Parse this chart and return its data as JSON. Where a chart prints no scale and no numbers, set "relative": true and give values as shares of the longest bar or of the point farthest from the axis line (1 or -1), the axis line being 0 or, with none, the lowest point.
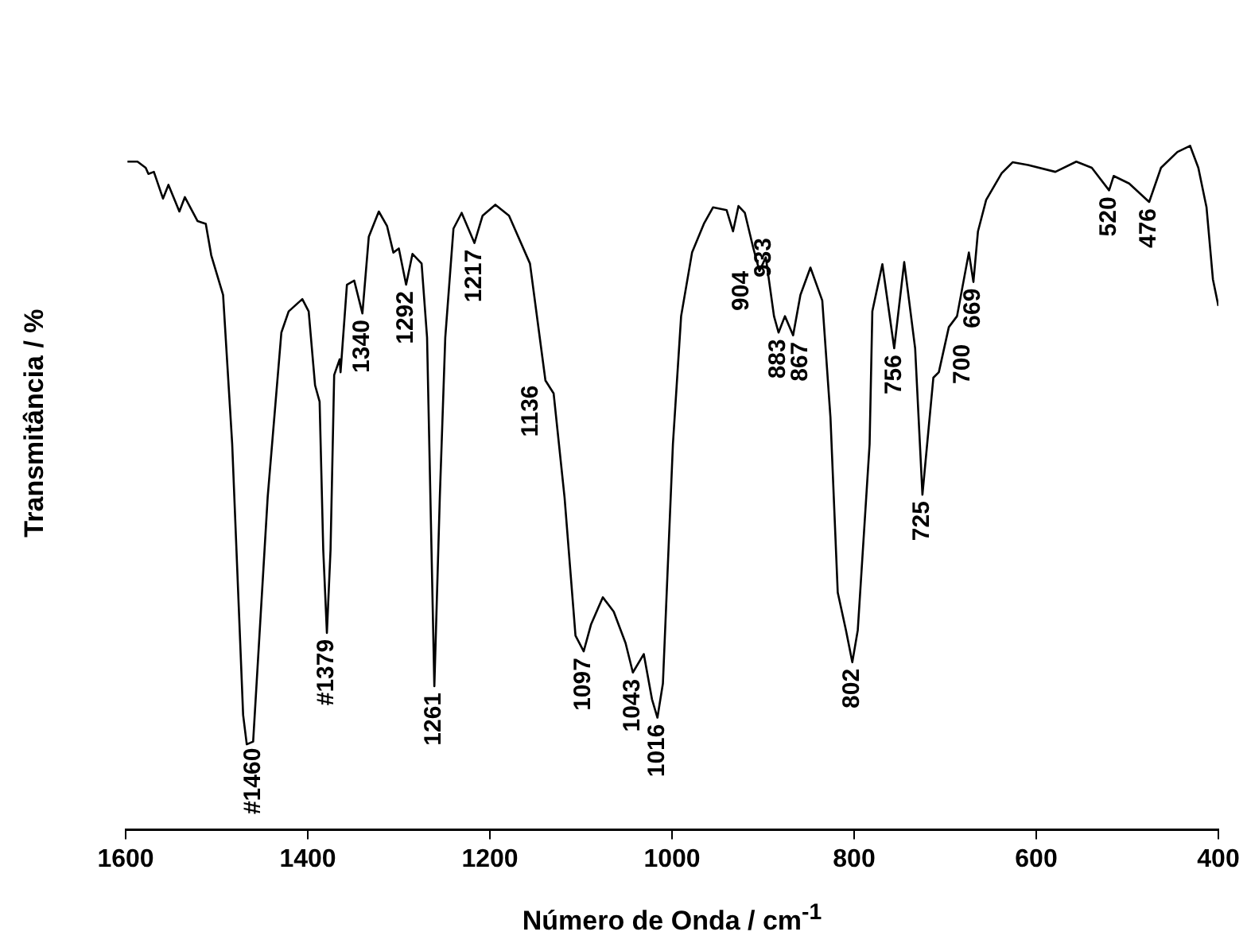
{
  "chart_data": {
    "type": "line",
    "relative": true,
    "xlabel": "Número de Onda / cm$^{-1}$",
    "ylabel": "Transmitância / %",
    "xlim": [
      1600,
      400
    ],
    "xticks": [
      1600,
      1400,
      1200,
      1000,
      800,
      600,
      400
    ],
    "grid": false,
    "legend": false,
    "marker": "none",
    "line_style": "solid",
    "tick_labels": "x",
    "series": [
      {
        "color": "#000000",
        "x": [
          1598,
          1587,
          1578,
          1575,
          1569,
          1559,
          1553,
          1541,
          1535,
          1521,
          1512,
          1506,
          1493,
          1483,
          1471,
          1467,
          1460,
          1444,
          1429,
          1421,
          1406,
          1399,
          1392,
          1387,
          1383,
          1379,
          1375,
          1371,
          1365,
          1364,
          1357,
          1349,
          1340,
          1333,
          1322,
          1313,
          1306,
          1300,
          1292,
          1285,
          1275,
          1269,
          1261,
          1255,
          1249,
          1240,
          1231,
          1217,
          1208,
          1194,
          1179,
          1156,
          1139,
          1130,
          1118,
          1106,
          1097,
          1089,
          1076,
          1064,
          1051,
          1043,
          1031,
          1022,
          1016,
          1010,
          999,
          990,
          978,
          965,
          955,
          940,
          933,
          927,
          920,
          911,
          904,
          897,
          888,
          883,
          876,
          867,
          859,
          848,
          835,
          826,
          818,
          809,
          802,
          796,
          783,
          780,
          769,
          756,
          745,
          733,
          725,
          713,
          707,
          696,
          687,
          674,
          669,
          664,
          655,
          638,
          626,
          609,
          579,
          556,
          539,
          520,
          515,
          498,
          476,
          463,
          445,
          431,
          422,
          413,
          406,
          400
        ],
        "values": [
          0.977,
          0.977,
          0.968,
          0.959,
          0.962,
          0.923,
          0.943,
          0.904,
          0.925,
          0.89,
          0.886,
          0.84,
          0.782,
          0.564,
          0.168,
          0.125,
          0.129,
          0.487,
          0.727,
          0.758,
          0.776,
          0.758,
          0.65,
          0.626,
          0.409,
          0.288,
          0.409,
          0.665,
          0.688,
          0.669,
          0.797,
          0.803,
          0.755,
          0.867,
          0.904,
          0.883,
          0.844,
          0.85,
          0.797,
          0.842,
          0.828,
          0.72,
          0.21,
          0.486,
          0.72,
          0.879,
          0.902,
          0.858,
          0.898,
          0.914,
          0.898,
          0.828,
          0.657,
          0.638,
          0.486,
          0.284,
          0.261,
          0.3,
          0.34,
          0.319,
          0.273,
          0.23,
          0.257,
          0.191,
          0.164,
          0.214,
          0.564,
          0.751,
          0.844,
          0.886,
          0.91,
          0.906,
          0.875,
          0.912,
          0.902,
          0.852,
          0.817,
          0.837,
          0.751,
          0.727,
          0.751,
          0.723,
          0.782,
          0.822,
          0.774,
          0.603,
          0.347,
          0.292,
          0.245,
          0.292,
          0.564,
          0.758,
          0.827,
          0.704,
          0.83,
          0.704,
          0.49,
          0.661,
          0.669,
          0.735,
          0.751,
          0.844,
          0.801,
          0.875,
          0.921,
          0.96,
          0.976,
          0.972,
          0.962,
          0.977,
          0.968,
          0.935,
          0.956,
          0.945,
          0.918,
          0.968,
          0.991,
          1.0,
          0.968,
          0.91,
          0.805,
          0.766
        ]
      }
    ],
    "annotations": [
      {
        "text": "#1460",
        "x": 1460,
        "y": 0.129
      },
      {
        "text": "#1379",
        "x": 1379,
        "y": 0.288
      },
      {
        "text": "1340",
        "x": 1340,
        "y": 0.755
      },
      {
        "text": "1292",
        "x": 1292,
        "y": 0.797
      },
      {
        "text": "1261",
        "x": 1261,
        "y": 0.21
      },
      {
        "text": "1217",
        "x": 1217,
        "y": 0.858
      },
      {
        "text": "1136",
        "x": 1136,
        "y": 0.65
      },
      {
        "text": "1097",
        "x": 1097,
        "y": 0.261
      },
      {
        "text": "1043",
        "x": 1043,
        "y": 0.23
      },
      {
        "text": "1016",
        "x": 1016,
        "y": 0.164
      },
      {
        "text": "904",
        "x": 904,
        "y": 0.817
      },
      {
        "text": "933",
        "x": 933,
        "y": 0.875
      },
      {
        "text": "883",
        "x": 883,
        "y": 0.727
      },
      {
        "text": "867",
        "x": 867,
        "y": 0.723
      },
      {
        "text": "802",
        "x": 802,
        "y": 0.245
      },
      {
        "text": "756",
        "x": 756,
        "y": 0.704
      },
      {
        "text": "725",
        "x": 725,
        "y": 0.49
      },
      {
        "text": "700",
        "x": 700,
        "y": 0.71
      },
      {
        "text": "669",
        "x": 669,
        "y": 0.801
      },
      {
        "text": "520",
        "x": 520,
        "y": 0.935
      },
      {
        "text": "476",
        "x": 476,
        "y": 0.918
      }
    ]
  }
}
